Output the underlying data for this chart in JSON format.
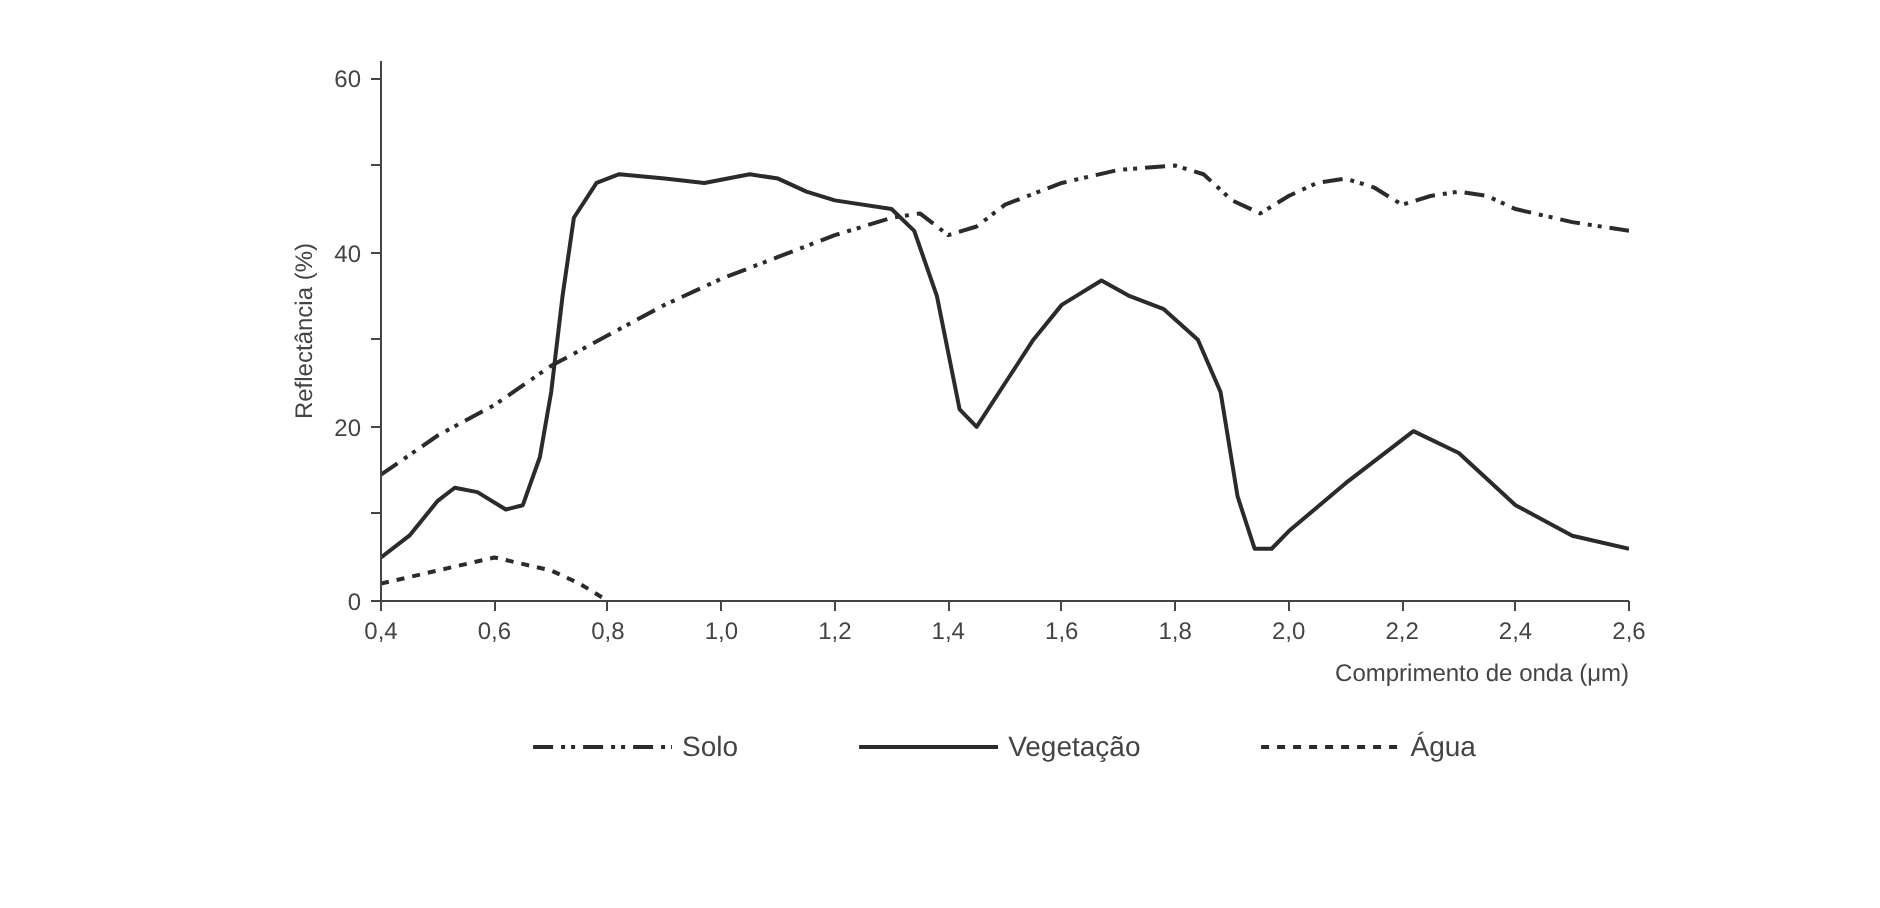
{
  "chart_data": {
    "type": "line",
    "xlabel": "Comprimento de onda (μm)",
    "ylabel": "Reflectância (%)",
    "xlim": [
      0.4,
      2.6
    ],
    "ylim": [
      0,
      62
    ],
    "xticks": [
      {
        "value": 0.4,
        "label": "0,4"
      },
      {
        "value": 0.6,
        "label": "0,6"
      },
      {
        "value": 0.8,
        "label": "0,8"
      },
      {
        "value": 1.0,
        "label": "1,0"
      },
      {
        "value": 1.2,
        "label": "1,2"
      },
      {
        "value": 1.4,
        "label": "1,4"
      },
      {
        "value": 1.6,
        "label": "1,6"
      },
      {
        "value": 1.8,
        "label": "1,8"
      },
      {
        "value": 2.0,
        "label": "2,0"
      },
      {
        "value": 2.2,
        "label": "2,2"
      },
      {
        "value": 2.4,
        "label": "2,4"
      },
      {
        "value": 2.6,
        "label": "2,6"
      }
    ],
    "yticks": [
      0,
      {
        "value": 10,
        "label": null
      },
      20,
      {
        "value": 30,
        "label": null
      },
      40,
      {
        "value": 50,
        "label": null
      },
      60
    ],
    "legend": "bottom",
    "series": [
      {
        "name": "Solo",
        "color": "#2b2b2b",
        "line_style": "dashdot",
        "x": [
          0.4,
          0.5,
          0.6,
          0.7,
          0.8,
          0.9,
          1.0,
          1.1,
          1.2,
          1.3,
          1.35,
          1.4,
          1.45,
          1.5,
          1.6,
          1.7,
          1.8,
          1.85,
          1.9,
          1.95,
          2.0,
          2.05,
          2.1,
          2.15,
          2.2,
          2.25,
          2.3,
          2.35,
          2.4,
          2.5,
          2.6
        ],
        "values": [
          14.5,
          19,
          22.5,
          27,
          30.5,
          34,
          37,
          39.5,
          42,
          44,
          44.5,
          42,
          43,
          45.5,
          48,
          49.5,
          50,
          49,
          46,
          44.5,
          46.5,
          48,
          48.5,
          47.5,
          45.5,
          46.5,
          47,
          46.5,
          45,
          43.5,
          42.5
        ]
      },
      {
        "name": "Vegetação",
        "color": "#2b2b2b",
        "line_style": "solid",
        "x": [
          0.4,
          0.45,
          0.5,
          0.53,
          0.57,
          0.62,
          0.65,
          0.68,
          0.7,
          0.72,
          0.74,
          0.78,
          0.82,
          0.9,
          0.97,
          1.05,
          1.1,
          1.15,
          1.2,
          1.3,
          1.34,
          1.38,
          1.42,
          1.45,
          1.5,
          1.55,
          1.6,
          1.67,
          1.72,
          1.78,
          1.84,
          1.88,
          1.91,
          1.94,
          1.97,
          2.0,
          2.1,
          2.22,
          2.3,
          2.4,
          2.5,
          2.6
        ],
        "values": [
          5,
          7.5,
          11.5,
          13,
          12.5,
          10.5,
          11,
          16.5,
          24,
          35,
          44,
          48,
          49,
          48.5,
          48,
          49,
          48.5,
          47,
          46,
          45,
          42.5,
          35,
          22,
          20,
          25,
          30,
          34,
          36.8,
          35,
          33.5,
          30,
          24,
          12,
          6,
          6,
          8,
          13.5,
          19.5,
          17,
          11,
          7.5,
          6
        ]
      },
      {
        "name": "Água",
        "color": "#2b2b2b",
        "line_style": "dashed",
        "x": [
          0.4,
          0.5,
          0.6,
          0.7,
          0.75,
          0.8
        ],
        "values": [
          2,
          3.5,
          5,
          3.5,
          2,
          0
        ]
      }
    ]
  }
}
